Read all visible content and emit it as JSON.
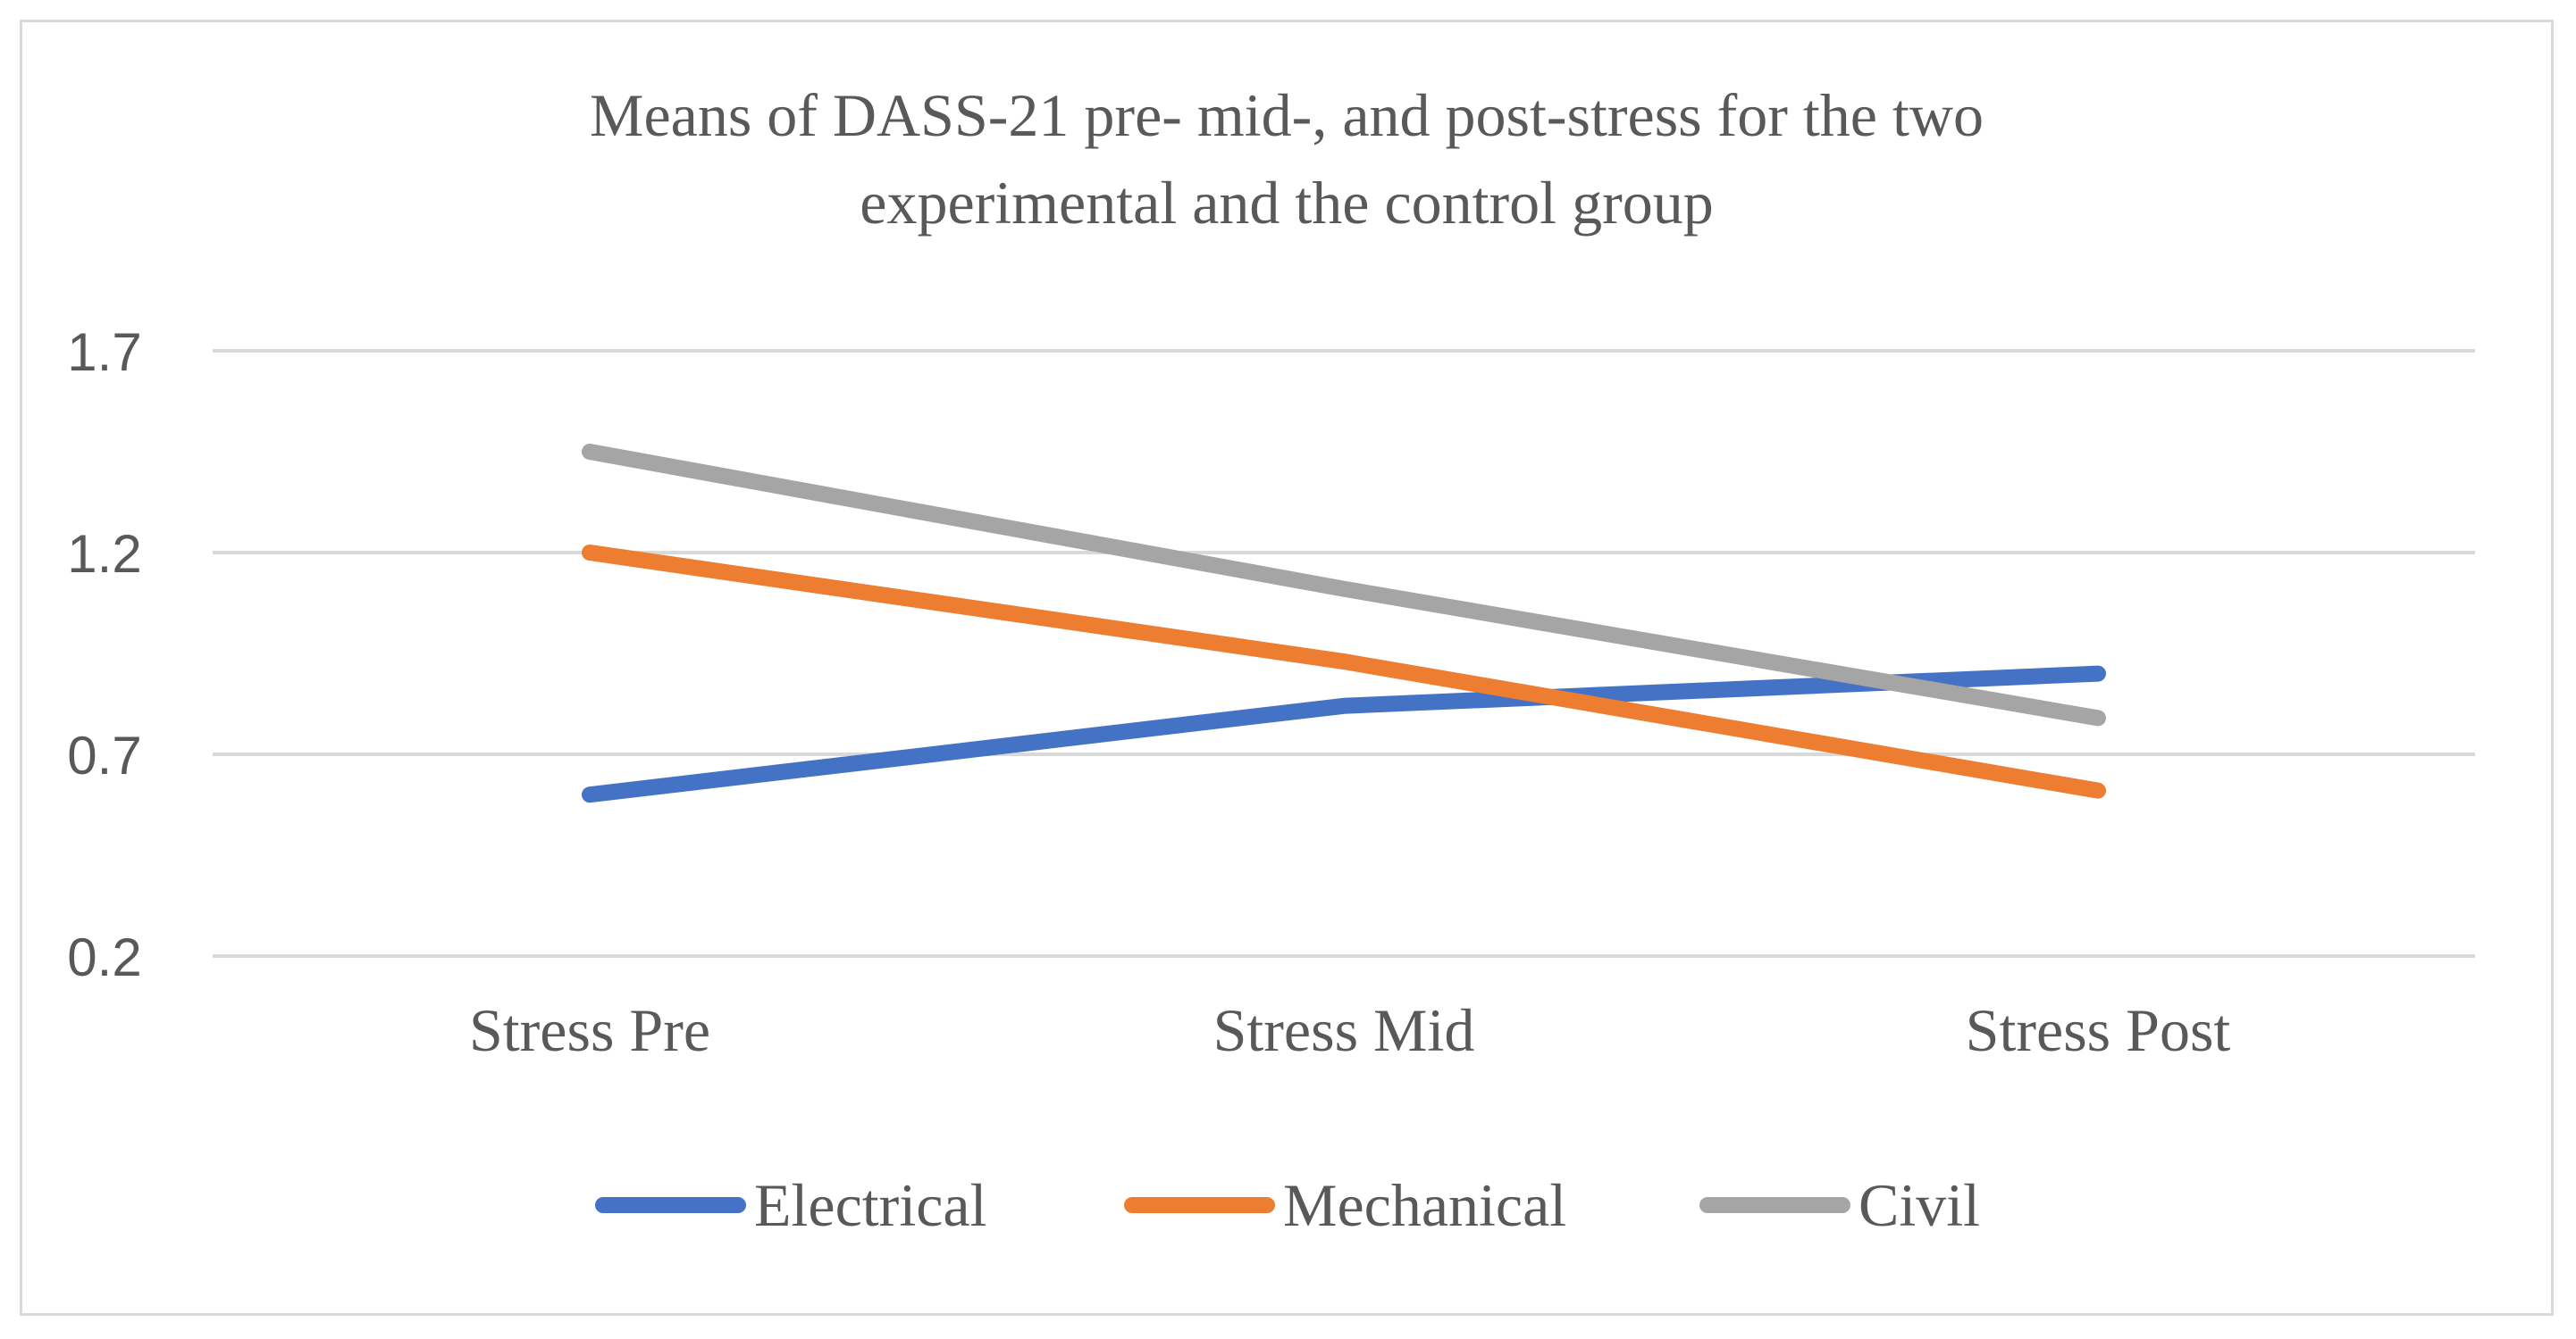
{
  "chart_data": {
    "type": "line",
    "title_lines": [
      "Means of DASS-21 pre- mid-, and post-stress for the two",
      "experimental and the control group"
    ],
    "categories": [
      "Stress Pre",
      "Stress Mid",
      "Stress Post"
    ],
    "y_ticks": [
      "1.7",
      "1.2",
      "0.7",
      "0.2"
    ],
    "ylim": [
      0.2,
      1.7
    ],
    "xlabel": "",
    "ylabel": "",
    "grid": true,
    "legend_position": "bottom",
    "series": [
      {
        "name": "Electrical",
        "values": [
          0.6,
          0.82,
          0.9
        ],
        "color": "#4472C4"
      },
      {
        "name": "Mechanical",
        "values": [
          1.2,
          0.93,
          0.61
        ],
        "color": "#ED7D31"
      },
      {
        "name": "Civil",
        "values": [
          1.45,
          1.11,
          0.79
        ],
        "color": "#A5A5A5"
      }
    ]
  }
}
